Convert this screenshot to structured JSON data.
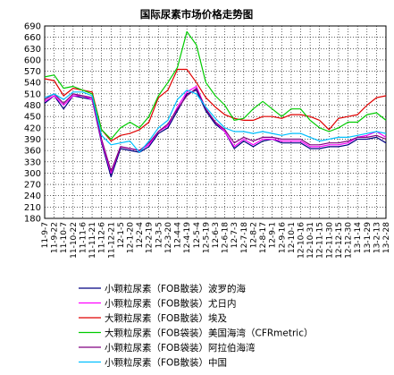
{
  "chart_data": {
    "type": "line",
    "title": "国际尿素市场价格走势图",
    "ylim": [
      180,
      690
    ],
    "yticks": [
      180,
      210,
      240,
      270,
      300,
      330,
      360,
      390,
      420,
      450,
      480,
      510,
      540,
      570,
      600,
      630,
      660,
      690
    ],
    "grid": true,
    "legend_position": "bottom",
    "x": [
      "11-9-7",
      "11-9-22",
      "11-10-7",
      "11-10-22",
      "11-11-6",
      "11-11-21",
      "11-12-6",
      "11-12-21",
      "12-1-5",
      "12-1-20",
      "12-2-4",
      "12-2-19",
      "12-3-5",
      "12-3-20",
      "12-4-4",
      "12-4-19",
      "12-5-4",
      "12-5-19",
      "12-6-3",
      "12-6-18",
      "12-7-3",
      "12-7-18",
      "12-8-2",
      "12-8-17",
      "12-9-1",
      "12-9-16",
      "12-10-1",
      "12-10-16",
      "12-10-31",
      "12-11-15",
      "12-11-30",
      "12-12-15",
      "12-12-30",
      "13-1-14",
      "13-1-29",
      "13-2-13",
      "13-2-28"
    ],
    "x_tick_labels": [
      "11-9-7",
      "11-9-22",
      "11-10-7",
      "11-10-22",
      "11-11-6",
      "11-11-21",
      "11-12-6",
      "11-12-21",
      "12-1-5",
      "12-1-20",
      "12-2-4",
      "12-2-19",
      "12-3-5",
      "12-3-20",
      "12-4-4",
      "12-4-19",
      "12-5-4",
      "12-5-19",
      "12-6-3",
      "12-6-18",
      "12-7-3",
      "12-7-18",
      "12-8-2",
      "12-8-17",
      "12-9-1",
      "12-9-16",
      "12-10-1",
      "12-10-16",
      "12-10-31",
      "12-11-15",
      "12-11-30",
      "12-12-15",
      "12-12-30",
      "13-1-14",
      "13-1-29",
      "13-2-13",
      "13-2-28"
    ],
    "series": [
      {
        "name": "小颗粒尿素（FOB散装）波罗的海",
        "color": "#000080",
        "values": [
          485,
          505,
          470,
          505,
          500,
          495,
          380,
          290,
          365,
          360,
          355,
          370,
          405,
          420,
          465,
          510,
          520,
          465,
          430,
          410,
          365,
          385,
          370,
          385,
          390,
          380,
          380,
          380,
          365,
          365,
          370,
          370,
          375,
          390,
          390,
          395,
          380
        ]
      },
      {
        "name": "小颗粒尿素（FOB散装）尤日内",
        "color": "#ff00ff",
        "values": [
          490,
          505,
          480,
          505,
          505,
          495,
          385,
          300,
          370,
          365,
          360,
          375,
          410,
          425,
          475,
          515,
          530,
          470,
          435,
          410,
          370,
          390,
          375,
          390,
          390,
          385,
          385,
          385,
          370,
          370,
          375,
          375,
          380,
          395,
          400,
          410,
          395
        ]
      },
      {
        "name": "大颗粒尿素（FOB散装）埃及",
        "color": "#e00000",
        "values": [
          550,
          545,
          505,
          525,
          520,
          515,
          415,
          385,
          400,
          405,
          415,
          435,
          500,
          520,
          575,
          575,
          540,
          500,
          475,
          455,
          445,
          440,
          440,
          450,
          450,
          445,
          455,
          455,
          450,
          440,
          415,
          445,
          450,
          455,
          480,
          500,
          505
        ]
      },
      {
        "name": "大颗粒尿素（FOB袋装）美国海湾（CFRmetric）",
        "color": "#00cc00",
        "values": [
          555,
          560,
          525,
          530,
          520,
          510,
          415,
          390,
          420,
          435,
          420,
          450,
          505,
          540,
          580,
          675,
          640,
          540,
          505,
          480,
          440,
          445,
          470,
          490,
          470,
          450,
          470,
          470,
          440,
          420,
          410,
          420,
          435,
          435,
          455,
          460,
          440
        ]
      },
      {
        "name": "小颗粒尿素（FOB袋装）阿拉伯海湾",
        "color": "#800080",
        "values": [
          495,
          510,
          485,
          510,
          505,
          500,
          390,
          305,
          370,
          365,
          360,
          380,
          410,
          430,
          470,
          505,
          525,
          470,
          435,
          415,
          380,
          395,
          385,
          395,
          395,
          390,
          390,
          390,
          375,
          375,
          380,
          380,
          385,
          395,
          395,
          400,
          390
        ]
      },
      {
        "name": "小颗粒尿素（FOB散装）中国",
        "color": "#00bfff",
        "values": [
          500,
          510,
          495,
          515,
          515,
          505,
          400,
          375,
          380,
          385,
          355,
          385,
          420,
          440,
          495,
          520,
          510,
          475,
          445,
          420,
          410,
          410,
          405,
          410,
          405,
          400,
          405,
          405,
          395,
          385,
          390,
          395,
          395,
          400,
          405,
          410,
          405
        ]
      }
    ]
  }
}
